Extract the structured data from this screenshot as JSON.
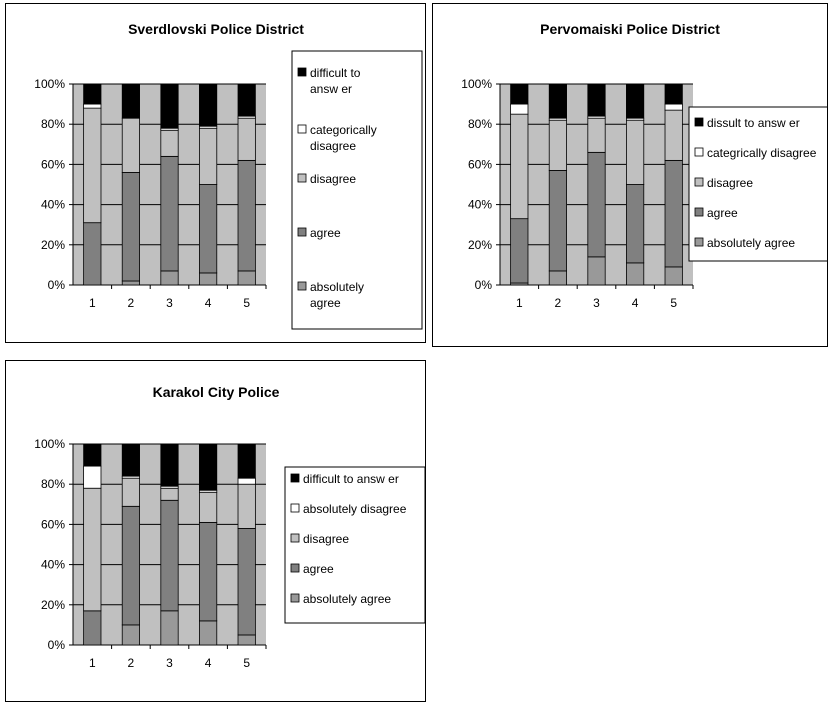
{
  "chart_data": [
    {
      "type": "bar",
      "stacked": true,
      "percent": true,
      "title": "Sverdlovski Police District",
      "categories": [
        "1",
        "2",
        "3",
        "4",
        "5"
      ],
      "y_ticks": [
        "0%",
        "20%",
        "40%",
        "60%",
        "80%",
        "100%"
      ],
      "ylim": [
        0,
        100
      ],
      "legend_position": "right",
      "grid": true,
      "series": [
        {
          "name": "absolutely agree",
          "values": [
            0,
            2,
            7,
            6,
            7
          ],
          "color": "#999999"
        },
        {
          "name": "agree",
          "values": [
            31,
            54,
            57,
            44,
            55
          ],
          "color": "#808080"
        },
        {
          "name": "disagree",
          "values": [
            57,
            27,
            13,
            28,
            21
          ],
          "color": "#c0c0c0"
        },
        {
          "name": "categorically disagree",
          "values": [
            2,
            0,
            1,
            1,
            1
          ],
          "color": "#ffffff"
        },
        {
          "name": "difficult to answ er",
          "values": [
            10,
            17,
            22,
            21,
            16
          ],
          "color": "#000000"
        }
      ]
    },
    {
      "type": "bar",
      "stacked": true,
      "percent": true,
      "title": "Pervomaiski Police District",
      "categories": [
        "1",
        "2",
        "3",
        "4",
        "5"
      ],
      "y_ticks": [
        "0%",
        "20%",
        "40%",
        "60%",
        "80%",
        "100%"
      ],
      "ylim": [
        0,
        100
      ],
      "legend_position": "right",
      "grid": true,
      "series": [
        {
          "name": "absolutely agree",
          "values": [
            1,
            7,
            14,
            11,
            9
          ],
          "color": "#999999"
        },
        {
          "name": "agree",
          "values": [
            32,
            50,
            52,
            39,
            53
          ],
          "color": "#808080"
        },
        {
          "name": "disagree",
          "values": [
            52,
            25,
            17,
            32,
            25
          ],
          "color": "#c0c0c0"
        },
        {
          "name": "categrically disagree",
          "values": [
            5,
            1,
            1,
            1,
            3
          ],
          "color": "#ffffff"
        },
        {
          "name": "dissult to answ er",
          "values": [
            10,
            17,
            16,
            17,
            10
          ],
          "color": "#000000"
        }
      ]
    },
    {
      "type": "bar",
      "stacked": true,
      "percent": true,
      "title": "Karakol City Police",
      "categories": [
        "1",
        "2",
        "3",
        "4",
        "5"
      ],
      "y_ticks": [
        "0%",
        "20%",
        "40%",
        "60%",
        "80%",
        "100%"
      ],
      "ylim": [
        0,
        100
      ],
      "legend_position": "right",
      "grid": true,
      "series": [
        {
          "name": "absolutely agree",
          "values": [
            0,
            10,
            17,
            12,
            5
          ],
          "color": "#999999"
        },
        {
          "name": "agree",
          "values": [
            17,
            59,
            55,
            49,
            53
          ],
          "color": "#808080"
        },
        {
          "name": "disagree",
          "values": [
            61,
            14,
            6,
            15,
            22
          ],
          "color": "#c0c0c0"
        },
        {
          "name": "absolutely disagree",
          "values": [
            11,
            1,
            1,
            1,
            3
          ],
          "color": "#ffffff"
        },
        {
          "name": "difficult to answ er",
          "values": [
            11,
            16,
            21,
            23,
            17
          ],
          "color": "#000000"
        }
      ]
    }
  ]
}
